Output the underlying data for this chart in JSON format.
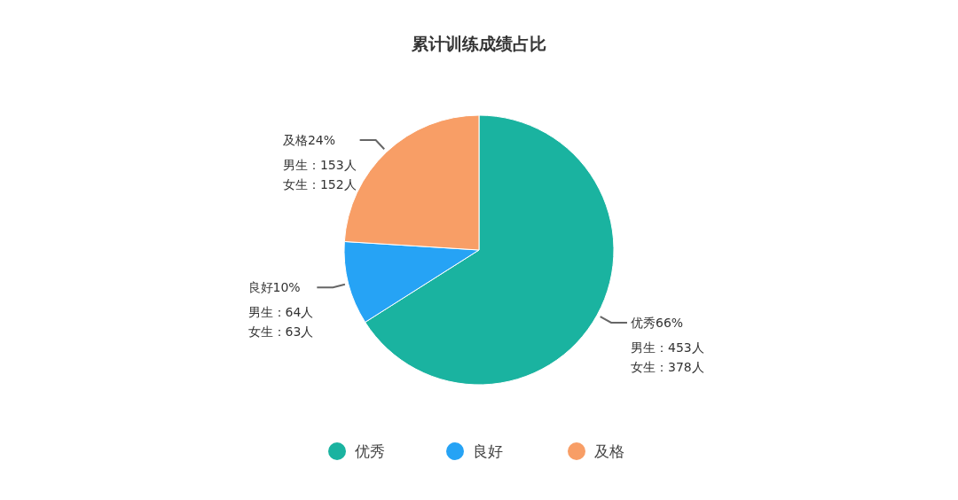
{
  "chart_data": {
    "type": "pie",
    "title": "累计训练成绩占比",
    "categories": [
      "优秀",
      "良好",
      "及格"
    ],
    "values": [
      66,
      10,
      24
    ],
    "colors": [
      "#1ab3a0",
      "#26a3f5",
      "#f89e66"
    ],
    "value_labels": [
      "66%",
      "10%",
      "24%"
    ],
    "annotations": [
      "男生：453人",
      "女生：378人",
      "男生：64人",
      "女生：63人",
      "男生：153人",
      "女生：152人"
    ],
    "legend": "bottom"
  }
}
